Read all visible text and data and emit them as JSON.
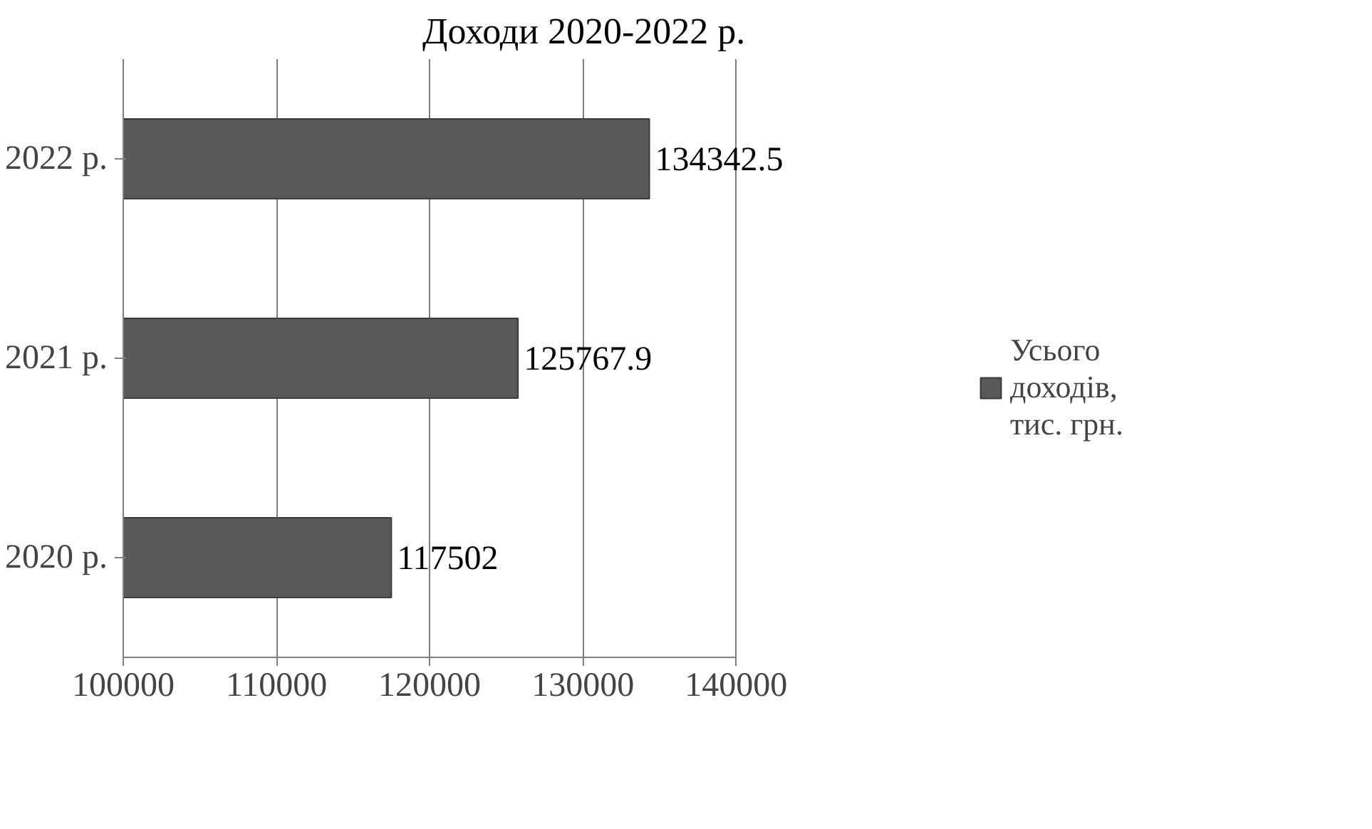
{
  "chart_data": {
    "type": "bar",
    "orientation": "horizontal",
    "title": "Доходи 2020-2022 р.",
    "categories": [
      "2022 р.",
      "2021 р.",
      "2020 р."
    ],
    "series": [
      {
        "name": "Усього доходів, тис. грн.",
        "color": "#595959",
        "values": [
          134342.5,
          125767.9,
          117502
        ]
      }
    ],
    "xlim": [
      100000,
      140000
    ],
    "xticks": [
      100000,
      110000,
      120000,
      130000,
      140000
    ],
    "grid": "x",
    "legend": "right",
    "data_labels": true
  }
}
